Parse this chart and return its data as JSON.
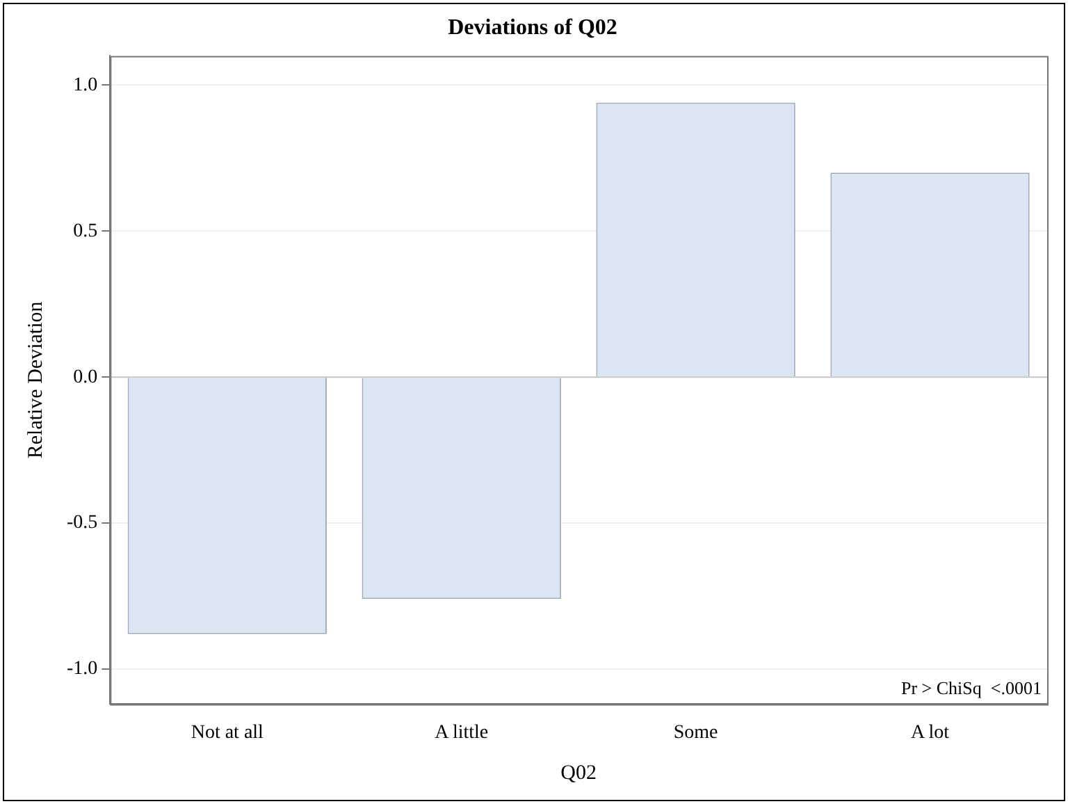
{
  "chart_data": {
    "type": "bar",
    "title": "Deviations of Q02",
    "xlabel": "Q02",
    "ylabel": "Relative Deviation",
    "categories": [
      "Not at all",
      "A little",
      "Some",
      "A lot"
    ],
    "values": [
      -0.88,
      -0.76,
      0.94,
      0.7
    ],
    "color": "#dce6f2",
    "ylim": [
      -1.12,
      1.1
    ],
    "yticks": [
      {
        "value": -1,
        "label": "-1.0"
      },
      {
        "value": -0.5,
        "label": "-0.5"
      },
      {
        "value": 0,
        "label": "0.0"
      },
      {
        "value": 0.5,
        "label": "0.5"
      },
      {
        "value": 1,
        "label": "1.0"
      }
    ],
    "grid": "y",
    "legend": false,
    "ref_lines": [
      {
        "axis": "y",
        "value": 0,
        "color": "#c8c8c8"
      }
    ],
    "annotations": [
      "Pr > ChiSq  <.0001"
    ]
  }
}
